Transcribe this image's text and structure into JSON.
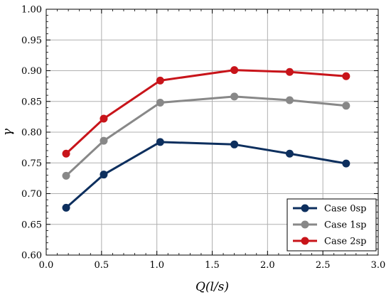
{
  "chart_data": {
    "type": "line",
    "xlabel": "Q(l/s)",
    "ylabel": "γ",
    "xlim": [
      0.0,
      3.0
    ],
    "ylim": [
      0.6,
      1.0
    ],
    "xticks": [
      "0.0",
      "0.5",
      "1.0",
      "1.5",
      "2.0",
      "2.5",
      "3.0"
    ],
    "yticks": [
      "0.60",
      "0.65",
      "0.70",
      "0.75",
      "0.80",
      "0.85",
      "0.90",
      "0.95",
      "1.00"
    ],
    "grid": true,
    "legend_position": "bottom-right",
    "series": [
      {
        "name": "Case 0sp",
        "color": "#0d2f5e",
        "points": [
          [
            0.18,
            0.677
          ],
          [
            0.52,
            0.731
          ],
          [
            1.03,
            0.784
          ],
          [
            1.7,
            0.78
          ],
          [
            2.2,
            0.765
          ],
          [
            2.71,
            0.749
          ]
        ]
      },
      {
        "name": "Case 1sp",
        "color": "#888888",
        "points": [
          [
            0.18,
            0.729
          ],
          [
            0.52,
            0.786
          ],
          [
            1.03,
            0.848
          ],
          [
            1.7,
            0.858
          ],
          [
            2.2,
            0.852
          ],
          [
            2.71,
            0.843
          ]
        ]
      },
      {
        "name": "Case 2sp",
        "color": "#c8141a",
        "points": [
          [
            0.18,
            0.765
          ],
          [
            0.52,
            0.822
          ],
          [
            1.03,
            0.884
          ],
          [
            1.7,
            0.901
          ],
          [
            2.2,
            0.898
          ],
          [
            2.71,
            0.891
          ]
        ]
      }
    ]
  }
}
